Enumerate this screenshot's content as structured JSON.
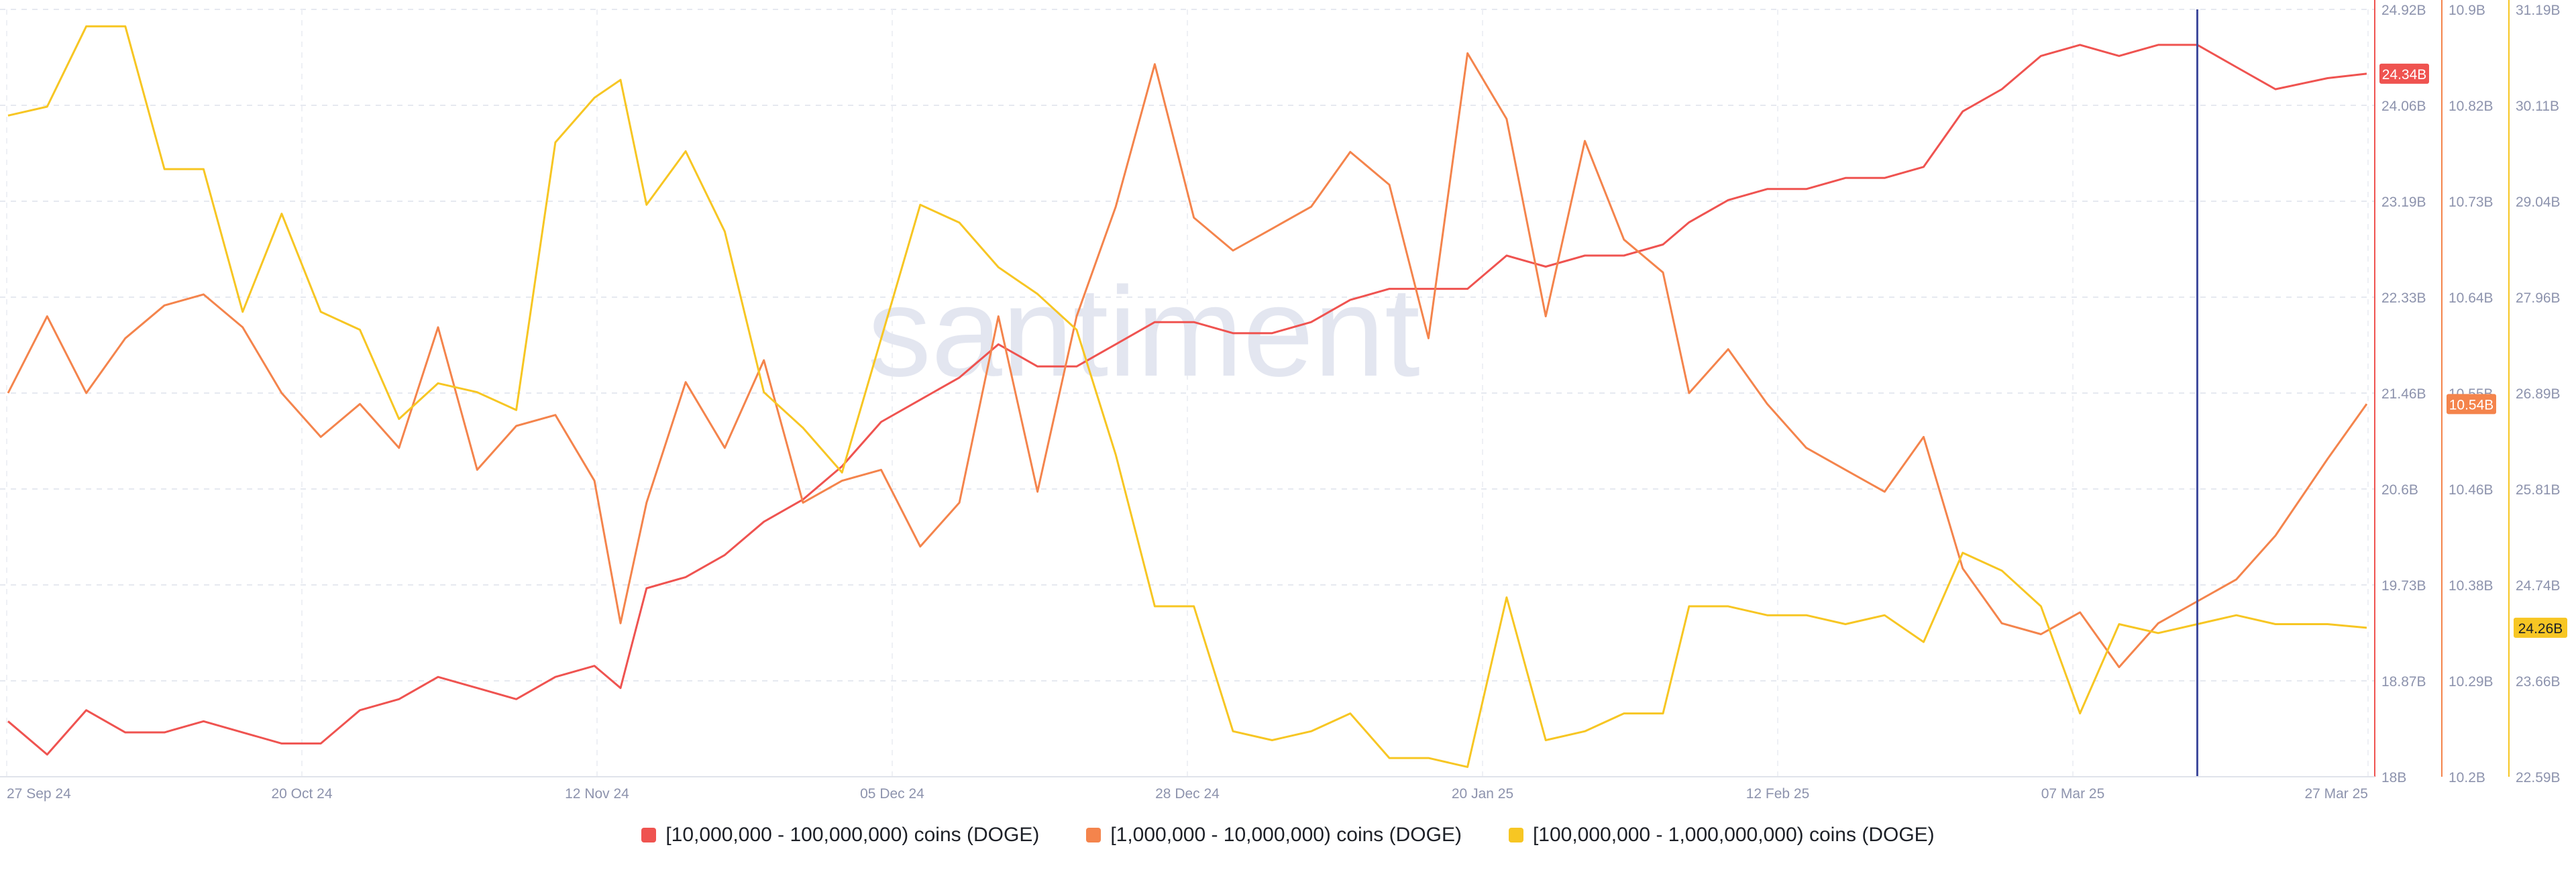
{
  "watermark": "santiment",
  "chart_data": {
    "type": "line",
    "x_tick_labels": [
      "27 Sep 24",
      "20 Oct 24",
      "12 Nov 24",
      "05 Dec 24",
      "28 Dec 24",
      "20 Jan 25",
      "12 Feb 25",
      "07 Mar 25",
      "27 Mar 25"
    ],
    "x_range": [
      "2024-09-27",
      "2025-03-27"
    ],
    "grid": true,
    "legend_position": "bottom",
    "crosshair_date": "2025-03-14",
    "axes": [
      {
        "id": "a1",
        "color": "#ef5350",
        "range": [
          18.0,
          24.92
        ],
        "ticks": [
          "24.92B",
          "24.06B",
          "23.19B",
          "22.33B",
          "21.46B",
          "20.6B",
          "19.73B",
          "18.87B",
          "18B"
        ],
        "current_label": "24.34B",
        "current_value": 24.34
      },
      {
        "id": "a2",
        "color": "#f4844c",
        "range": [
          10.2,
          10.9
        ],
        "ticks": [
          "10.9B",
          "10.82B",
          "10.73B",
          "10.64B",
          "10.55B",
          "10.46B",
          "10.38B",
          "10.29B",
          "10.2B"
        ],
        "current_label": "10.54B",
        "current_value": 10.54
      },
      {
        "id": "a3",
        "color": "#f7c623",
        "range": [
          22.59,
          31.19
        ],
        "ticks": [
          "31.19B",
          "30.11B",
          "29.04B",
          "27.96B",
          "26.89B",
          "25.81B",
          "24.74B",
          "23.66B",
          "22.59B"
        ],
        "current_label": "24.26B",
        "current_value": 24.26
      }
    ],
    "series": [
      {
        "name": "[10,000,000 - 100,000,000) coins (DOGE)",
        "color": "#ef5350",
        "axis": "a1",
        "unit": "B",
        "points": [
          [
            "2024-09-27",
            18.5
          ],
          [
            "2024-09-30",
            18.2
          ],
          [
            "2024-10-03",
            18.6
          ],
          [
            "2024-10-06",
            18.4
          ],
          [
            "2024-10-09",
            18.4
          ],
          [
            "2024-10-12",
            18.5
          ],
          [
            "2024-10-15",
            18.4
          ],
          [
            "2024-10-18",
            18.3
          ],
          [
            "2024-10-21",
            18.3
          ],
          [
            "2024-10-24",
            18.6
          ],
          [
            "2024-10-27",
            18.7
          ],
          [
            "2024-10-30",
            18.9
          ],
          [
            "2024-11-02",
            18.8
          ],
          [
            "2024-11-05",
            18.7
          ],
          [
            "2024-11-08",
            18.9
          ],
          [
            "2024-11-11",
            19.0
          ],
          [
            "2024-11-13",
            18.8
          ],
          [
            "2024-11-15",
            19.7
          ],
          [
            "2024-11-18",
            19.8
          ],
          [
            "2024-11-21",
            20.0
          ],
          [
            "2024-11-24",
            20.3
          ],
          [
            "2024-11-27",
            20.5
          ],
          [
            "2024-11-30",
            20.8
          ],
          [
            "2024-12-03",
            21.2
          ],
          [
            "2024-12-06",
            21.4
          ],
          [
            "2024-12-09",
            21.6
          ],
          [
            "2024-12-12",
            21.9
          ],
          [
            "2024-12-15",
            21.7
          ],
          [
            "2024-12-18",
            21.7
          ],
          [
            "2024-12-21",
            21.9
          ],
          [
            "2024-12-24",
            22.1
          ],
          [
            "2024-12-27",
            22.1
          ],
          [
            "2024-12-30",
            22.0
          ],
          [
            "2025-01-02",
            22.0
          ],
          [
            "2025-01-05",
            22.1
          ],
          [
            "2025-01-08",
            22.3
          ],
          [
            "2025-01-11",
            22.4
          ],
          [
            "2025-01-14",
            22.4
          ],
          [
            "2025-01-17",
            22.4
          ],
          [
            "2025-01-20",
            22.7
          ],
          [
            "2025-01-23",
            22.6
          ],
          [
            "2025-01-26",
            22.7
          ],
          [
            "2025-01-29",
            22.7
          ],
          [
            "2025-02-01",
            22.8
          ],
          [
            "2025-02-03",
            23.0
          ],
          [
            "2025-02-06",
            23.2
          ],
          [
            "2025-02-09",
            23.3
          ],
          [
            "2025-02-12",
            23.3
          ],
          [
            "2025-02-15",
            23.4
          ],
          [
            "2025-02-18",
            23.4
          ],
          [
            "2025-02-21",
            23.5
          ],
          [
            "2025-02-24",
            24.0
          ],
          [
            "2025-02-27",
            24.2
          ],
          [
            "2025-03-02",
            24.5
          ],
          [
            "2025-03-05",
            24.6
          ],
          [
            "2025-03-08",
            24.5
          ],
          [
            "2025-03-11",
            24.6
          ],
          [
            "2025-03-14",
            24.6
          ],
          [
            "2025-03-17",
            24.4
          ],
          [
            "2025-03-20",
            24.2
          ],
          [
            "2025-03-24",
            24.3
          ],
          [
            "2025-03-27",
            24.34
          ]
        ]
      },
      {
        "name": "[1,000,000 - 10,000,000) coins (DOGE)",
        "color": "#f4844c",
        "axis": "a2",
        "unit": "B",
        "points": [
          [
            "2024-09-27",
            10.55
          ],
          [
            "2024-09-30",
            10.62
          ],
          [
            "2024-10-03",
            10.55
          ],
          [
            "2024-10-06",
            10.6
          ],
          [
            "2024-10-09",
            10.63
          ],
          [
            "2024-10-12",
            10.64
          ],
          [
            "2024-10-15",
            10.61
          ],
          [
            "2024-10-18",
            10.55
          ],
          [
            "2024-10-21",
            10.51
          ],
          [
            "2024-10-24",
            10.54
          ],
          [
            "2024-10-27",
            10.5
          ],
          [
            "2024-10-30",
            10.61
          ],
          [
            "2024-11-02",
            10.48
          ],
          [
            "2024-11-05",
            10.52
          ],
          [
            "2024-11-08",
            10.53
          ],
          [
            "2024-11-11",
            10.47
          ],
          [
            "2024-11-13",
            10.34
          ],
          [
            "2024-11-15",
            10.45
          ],
          [
            "2024-11-18",
            10.56
          ],
          [
            "2024-11-21",
            10.5
          ],
          [
            "2024-11-24",
            10.58
          ],
          [
            "2024-11-27",
            10.45
          ],
          [
            "2024-11-30",
            10.47
          ],
          [
            "2024-12-03",
            10.48
          ],
          [
            "2024-12-06",
            10.41
          ],
          [
            "2024-12-09",
            10.45
          ],
          [
            "2024-12-12",
            10.62
          ],
          [
            "2024-12-15",
            10.46
          ],
          [
            "2024-12-18",
            10.62
          ],
          [
            "2024-12-21",
            10.72
          ],
          [
            "2024-12-24",
            10.85
          ],
          [
            "2024-12-27",
            10.71
          ],
          [
            "2024-12-30",
            10.68
          ],
          [
            "2025-01-02",
            10.7
          ],
          [
            "2025-01-05",
            10.72
          ],
          [
            "2025-01-08",
            10.77
          ],
          [
            "2025-01-11",
            10.74
          ],
          [
            "2025-01-14",
            10.6
          ],
          [
            "2025-01-17",
            10.86
          ],
          [
            "2025-01-20",
            10.8
          ],
          [
            "2025-01-23",
            10.62
          ],
          [
            "2025-01-26",
            10.78
          ],
          [
            "2025-01-29",
            10.69
          ],
          [
            "2025-02-01",
            10.66
          ],
          [
            "2025-02-03",
            10.55
          ],
          [
            "2025-02-06",
            10.59
          ],
          [
            "2025-02-09",
            10.54
          ],
          [
            "2025-02-12",
            10.5
          ],
          [
            "2025-02-15",
            10.48
          ],
          [
            "2025-02-18",
            10.46
          ],
          [
            "2025-02-21",
            10.51
          ],
          [
            "2025-02-24",
            10.39
          ],
          [
            "2025-02-27",
            10.34
          ],
          [
            "2025-03-02",
            10.33
          ],
          [
            "2025-03-05",
            10.35
          ],
          [
            "2025-03-08",
            10.3
          ],
          [
            "2025-03-11",
            10.34
          ],
          [
            "2025-03-14",
            10.36
          ],
          [
            "2025-03-17",
            10.38
          ],
          [
            "2025-03-20",
            10.42
          ],
          [
            "2025-03-24",
            10.49
          ],
          [
            "2025-03-27",
            10.54
          ]
        ]
      },
      {
        "name": "[100,000,000 - 1,000,000,000) coins (DOGE)",
        "color": "#f7c623",
        "axis": "a3",
        "unit": "B",
        "points": [
          [
            "2024-09-27",
            30.0
          ],
          [
            "2024-09-30",
            30.1
          ],
          [
            "2024-10-03",
            31.0
          ],
          [
            "2024-10-06",
            31.0
          ],
          [
            "2024-10-09",
            29.4
          ],
          [
            "2024-10-12",
            29.4
          ],
          [
            "2024-10-15",
            27.8
          ],
          [
            "2024-10-18",
            28.9
          ],
          [
            "2024-10-21",
            27.8
          ],
          [
            "2024-10-24",
            27.6
          ],
          [
            "2024-10-27",
            26.6
          ],
          [
            "2024-10-30",
            27.0
          ],
          [
            "2024-11-02",
            26.9
          ],
          [
            "2024-11-05",
            26.7
          ],
          [
            "2024-11-08",
            29.7
          ],
          [
            "2024-11-11",
            30.2
          ],
          [
            "2024-11-13",
            30.4
          ],
          [
            "2024-11-15",
            29.0
          ],
          [
            "2024-11-18",
            29.6
          ],
          [
            "2024-11-21",
            28.7
          ],
          [
            "2024-11-24",
            26.9
          ],
          [
            "2024-11-27",
            26.5
          ],
          [
            "2024-11-30",
            26.0
          ],
          [
            "2024-12-03",
            27.5
          ],
          [
            "2024-12-06",
            29.0
          ],
          [
            "2024-12-09",
            28.8
          ],
          [
            "2024-12-12",
            28.3
          ],
          [
            "2024-12-15",
            28.0
          ],
          [
            "2024-12-18",
            27.6
          ],
          [
            "2024-12-21",
            26.2
          ],
          [
            "2024-12-24",
            24.5
          ],
          [
            "2024-12-27",
            24.5
          ],
          [
            "2024-12-30",
            23.1
          ],
          [
            "2025-01-02",
            23.0
          ],
          [
            "2025-01-05",
            23.1
          ],
          [
            "2025-01-08",
            23.3
          ],
          [
            "2025-01-11",
            22.8
          ],
          [
            "2025-01-14",
            22.8
          ],
          [
            "2025-01-17",
            22.7
          ],
          [
            "2025-01-20",
            24.6
          ],
          [
            "2025-01-23",
            23.0
          ],
          [
            "2025-01-26",
            23.1
          ],
          [
            "2025-01-29",
            23.3
          ],
          [
            "2025-02-01",
            23.3
          ],
          [
            "2025-02-03",
            24.5
          ],
          [
            "2025-02-06",
            24.5
          ],
          [
            "2025-02-09",
            24.4
          ],
          [
            "2025-02-12",
            24.4
          ],
          [
            "2025-02-15",
            24.3
          ],
          [
            "2025-02-18",
            24.4
          ],
          [
            "2025-02-21",
            24.1
          ],
          [
            "2025-02-24",
            25.1
          ],
          [
            "2025-02-27",
            24.9
          ],
          [
            "2025-03-02",
            24.5
          ],
          [
            "2025-03-05",
            23.3
          ],
          [
            "2025-03-08",
            24.3
          ],
          [
            "2025-03-11",
            24.2
          ],
          [
            "2025-03-14",
            24.3
          ],
          [
            "2025-03-17",
            24.4
          ],
          [
            "2025-03-20",
            24.3
          ],
          [
            "2025-03-24",
            24.3
          ],
          [
            "2025-03-27",
            24.26
          ]
        ]
      }
    ]
  }
}
